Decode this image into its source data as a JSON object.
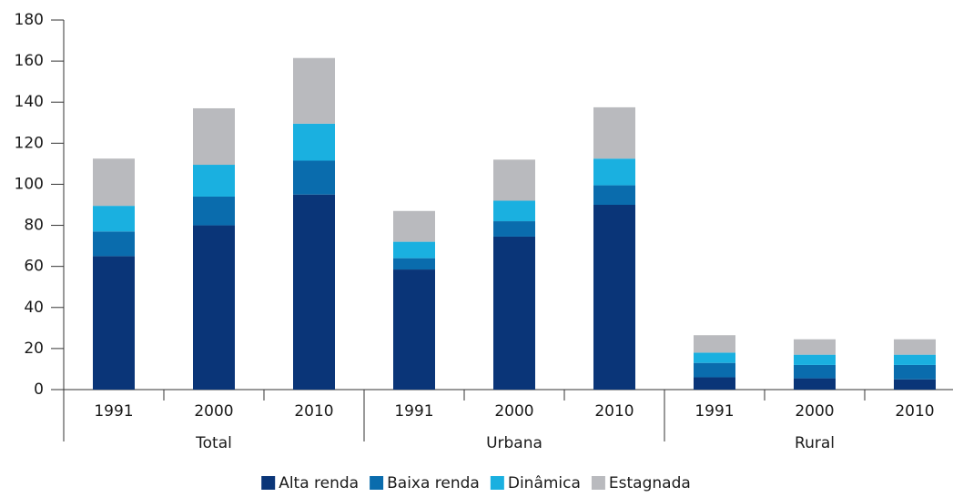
{
  "chart_data": {
    "type": "stacked-bar",
    "groups": [
      {
        "label": "Total",
        "categories": [
          "1991",
          "2000",
          "2010"
        ]
      },
      {
        "label": "Urbana",
        "categories": [
          "1991",
          "2000",
          "2010"
        ]
      },
      {
        "label": "Rural",
        "categories": [
          "1991",
          "2000",
          "2010"
        ]
      }
    ],
    "series": [
      {
        "name": "Alta renda",
        "color": "#0a3578",
        "values": [
          65,
          80,
          95,
          58.5,
          74.5,
          90,
          6,
          5.5,
          5
        ]
      },
      {
        "name": "Baixa renda",
        "color": "#0a6cad",
        "values": [
          12,
          14,
          16.5,
          5.5,
          7.5,
          9.5,
          7,
          6.5,
          7
        ]
      },
      {
        "name": "Dinâmica",
        "color": "#1ab0e0",
        "values": [
          12.5,
          15.5,
          18,
          8,
          10,
          13,
          5,
          5,
          5
        ]
      },
      {
        "name": "Estagnada",
        "color": "#b9babe",
        "values": [
          23,
          27.5,
          32,
          15,
          20,
          25,
          8.5,
          7.5,
          7.5
        ]
      }
    ],
    "ylim": [
      0,
      180
    ],
    "yticks": [
      0,
      20,
      40,
      60,
      80,
      100,
      120,
      140,
      160,
      180
    ],
    "legend": "bottom"
  }
}
